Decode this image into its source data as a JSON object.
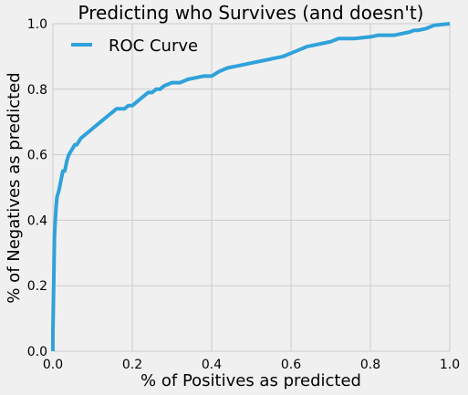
{
  "chart_data": {
    "type": "line",
    "title": "Predicting who Survives (and doesn't)",
    "xlabel": "% of Positives as predicted",
    "ylabel": "% of Negatives as predicted",
    "xlim": [
      0,
      1
    ],
    "ylim": [
      0,
      1
    ],
    "xticks": [
      "0.0",
      "0.2",
      "0.4",
      "0.6",
      "0.8",
      "1.0"
    ],
    "yticks": [
      "0.0",
      "0.2",
      "0.4",
      "0.6",
      "0.8",
      "1.0"
    ],
    "grid": true,
    "legend_position": "top-left",
    "colors": {
      "background": "#f0f0f0",
      "grid": "#cbcbcb",
      "line": "#30a2da"
    },
    "series": [
      {
        "name": "ROC Curve",
        "x": [
          0,
          0,
          0.002,
          0.004,
          0.006,
          0.008,
          0.01,
          0.015,
          0.02,
          0.025,
          0.03,
          0.035,
          0.04,
          0.045,
          0.05,
          0.055,
          0.06,
          0.07,
          0.08,
          0.09,
          0.1,
          0.11,
          0.12,
          0.13,
          0.14,
          0.15,
          0.16,
          0.17,
          0.18,
          0.19,
          0.2,
          0.22,
          0.24,
          0.25,
          0.26,
          0.27,
          0.28,
          0.3,
          0.32,
          0.34,
          0.36,
          0.38,
          0.4,
          0.42,
          0.43,
          0.44,
          0.46,
          0.48,
          0.5,
          0.52,
          0.54,
          0.56,
          0.58,
          0.6,
          0.62,
          0.64,
          0.66,
          0.68,
          0.7,
          0.72,
          0.73,
          0.76,
          0.8,
          0.82,
          0.86,
          0.88,
          0.9,
          0.91,
          0.92,
          0.94,
          0.96,
          1.0
        ],
        "y": [
          0,
          0.06,
          0.21,
          0.35,
          0.4,
          0.44,
          0.47,
          0.49,
          0.52,
          0.55,
          0.55,
          0.58,
          0.6,
          0.61,
          0.62,
          0.63,
          0.63,
          0.65,
          0.66,
          0.67,
          0.68,
          0.69,
          0.7,
          0.71,
          0.72,
          0.73,
          0.74,
          0.74,
          0.74,
          0.75,
          0.75,
          0.77,
          0.79,
          0.79,
          0.8,
          0.8,
          0.81,
          0.82,
          0.82,
          0.83,
          0.835,
          0.84,
          0.84,
          0.855,
          0.86,
          0.865,
          0.87,
          0.875,
          0.88,
          0.885,
          0.89,
          0.895,
          0.9,
          0.91,
          0.92,
          0.93,
          0.935,
          0.94,
          0.945,
          0.955,
          0.955,
          0.955,
          0.96,
          0.965,
          0.965,
          0.97,
          0.975,
          0.98,
          0.98,
          0.985,
          0.995,
          1.0
        ]
      }
    ]
  }
}
